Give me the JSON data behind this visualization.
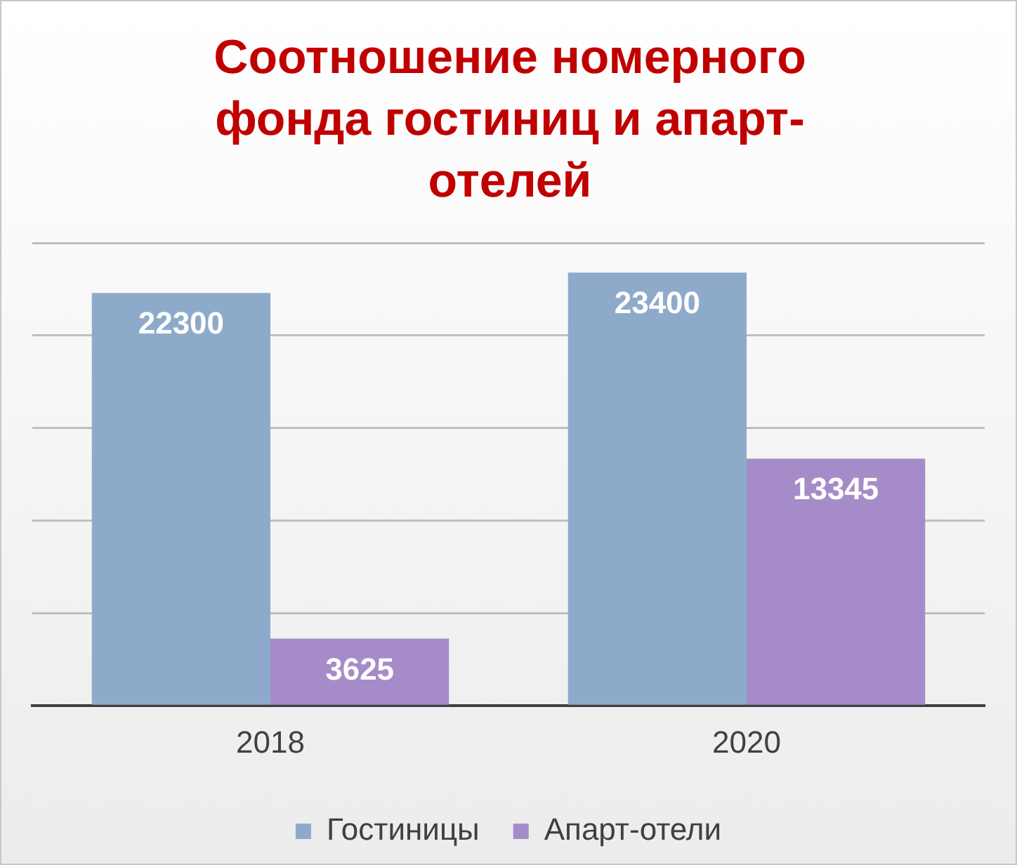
{
  "chart_data": {
    "type": "bar",
    "title": "Соотношение номерного фонда гостиниц и апарт-отелей",
    "categories": [
      "2018",
      "2020"
    ],
    "series": [
      {
        "name": "Гостиницы",
        "color": "#8eaacb",
        "values": [
          22300,
          23400
        ]
      },
      {
        "name": "Апарт-отели",
        "color": "#a58cc8",
        "values": [
          3625,
          13345
        ]
      }
    ],
    "ylim": [
      0,
      25000
    ],
    "yticks": [
      {
        "value": 0,
        "label": null
      },
      {
        "value": 5000,
        "label": null
      },
      {
        "value": 10000,
        "label": null
      },
      {
        "value": 15000,
        "label": null
      },
      {
        "value": 20000,
        "label": null
      },
      {
        "value": 25000,
        "label": null
      }
    ],
    "grid": "y",
    "tick_labels": "x",
    "legend": "bottom",
    "data_labels": true
  }
}
